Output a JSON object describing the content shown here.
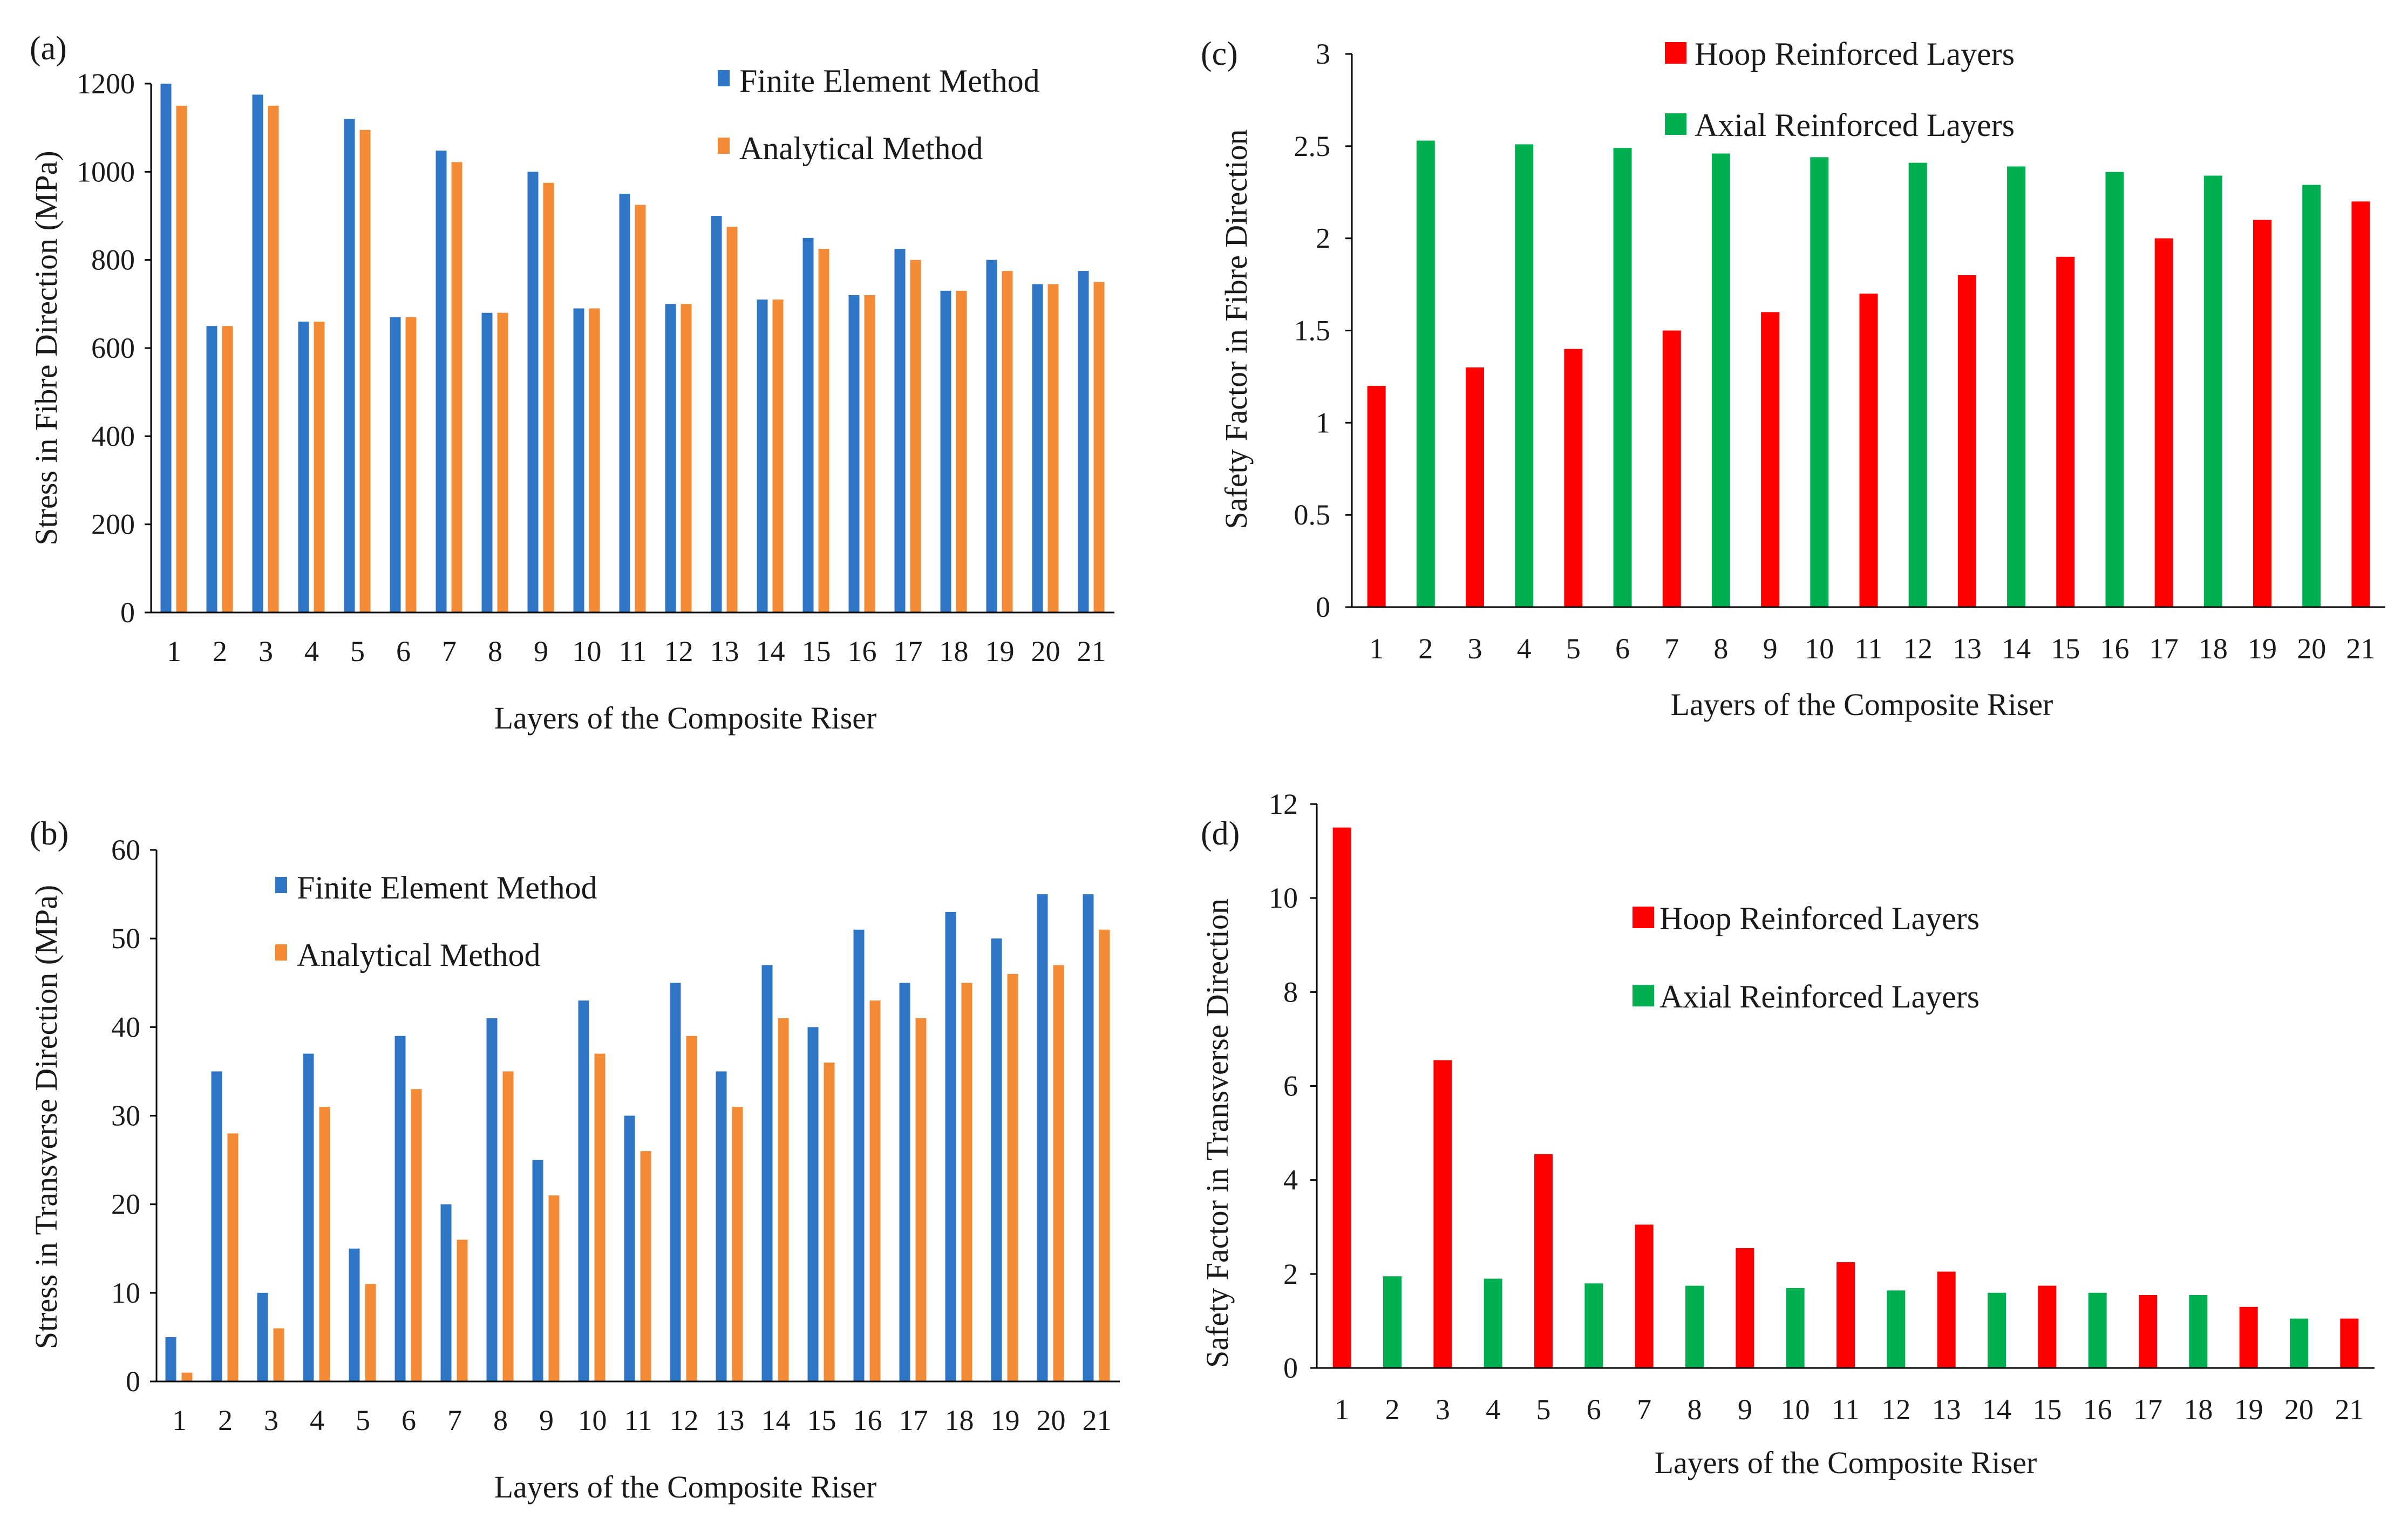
{
  "charts": {
    "a": {
      "type": "bar",
      "label": "(a)",
      "series_colors": [
        "#2e75c6",
        "#f28a36"
      ],
      "legend": [
        "Finite Element Method",
        "Analytical Method"
      ],
      "ylabel": "Stress in Fibre Direction (MPa)",
      "xlabel": "Layers of the Composite Riser",
      "yticks": [
        "0",
        "200",
        "400",
        "600",
        "800",
        "1000",
        "1200"
      ],
      "categories": [
        "1",
        "2",
        "3",
        "4",
        "5",
        "6",
        "7",
        "8",
        "9",
        "10",
        "11",
        "12",
        "13",
        "14",
        "15",
        "16",
        "17",
        "18",
        "19",
        "20",
        "21"
      ]
    },
    "b": {
      "type": "bar",
      "label": "(b)",
      "series_colors": [
        "#2e75c6",
        "#f28a36"
      ],
      "legend": [
        "Finite Element Method",
        "Analytical Method"
      ],
      "ylabel": "Stress in Transverse Direction (MPa)",
      "xlabel": "Layers of the Composite Riser",
      "yticks": [
        "0",
        "10",
        "20",
        "30",
        "40",
        "50",
        "60"
      ],
      "categories": [
        "1",
        "2",
        "3",
        "4",
        "5",
        "6",
        "7",
        "8",
        "9",
        "10",
        "11",
        "12",
        "13",
        "14",
        "15",
        "16",
        "17",
        "18",
        "19",
        "20",
        "21"
      ]
    },
    "c": {
      "type": "bar",
      "label": "(c)",
      "series_colors": [
        "#ff0000",
        "#00b050"
      ],
      "legend": [
        "Hoop Reinforced Layers",
        "Axial Reinforced Layers"
      ],
      "ylabel": "Safety Factor in Fibre Direction",
      "xlabel": "Layers of the Composite Riser",
      "yticks": [
        "0",
        "0.5",
        "1",
        "1.5",
        "2",
        "2.5",
        "3"
      ],
      "categories": [
        "1",
        "2",
        "3",
        "4",
        "5",
        "6",
        "7",
        "8",
        "9",
        "10",
        "11",
        "12",
        "13",
        "14",
        "15",
        "16",
        "17",
        "18",
        "19",
        "20",
        "21"
      ]
    },
    "d": {
      "type": "bar",
      "label": "(d)",
      "series_colors": [
        "#ff0000",
        "#00b050"
      ],
      "legend": [
        "Hoop Reinforced Layers",
        "Axial Reinforced Layers"
      ],
      "ylabel": "Safety Factor in Transverse Direction",
      "xlabel": "Layers of the Composite Riser",
      "yticks": [
        "0",
        "2",
        "4",
        "6",
        "8",
        "10",
        "12"
      ],
      "categories": [
        "1",
        "2",
        "3",
        "4",
        "5",
        "6",
        "7",
        "8",
        "9",
        "10",
        "11",
        "12",
        "13",
        "14",
        "15",
        "16",
        "17",
        "18",
        "19",
        "20",
        "21"
      ]
    }
  },
  "chart_data": [
    {
      "type": "bar",
      "title": "(a)",
      "xlabel": "Layers of the Composite Riser",
      "ylabel": "Stress in Fibre Direction (MPa)",
      "ylim": [
        0,
        1200
      ],
      "categories": [
        1,
        2,
        3,
        4,
        5,
        6,
        7,
        8,
        9,
        10,
        11,
        12,
        13,
        14,
        15,
        16,
        17,
        18,
        19,
        20,
        21
      ],
      "series": [
        {
          "name": "Finite Element Method",
          "values": [
            1200,
            650,
            1175,
            660,
            1120,
            670,
            1048,
            680,
            1000,
            690,
            950,
            700,
            900,
            710,
            850,
            720,
            825,
            730,
            800,
            745,
            775
          ]
        },
        {
          "name": "Analytical Method",
          "values": [
            1150,
            650,
            1150,
            660,
            1095,
            670,
            1022,
            680,
            975,
            690,
            925,
            700,
            875,
            710,
            825,
            720,
            800,
            730,
            775,
            745,
            750
          ]
        }
      ],
      "legend": "top-right"
    },
    {
      "type": "bar",
      "title": "(b)",
      "xlabel": "Layers of the Composite Riser",
      "ylabel": "Stress in Transverse Direction (MPa)",
      "ylim": [
        0,
        60
      ],
      "categories": [
        1,
        2,
        3,
        4,
        5,
        6,
        7,
        8,
        9,
        10,
        11,
        12,
        13,
        14,
        15,
        16,
        17,
        18,
        19,
        20,
        21
      ],
      "series": [
        {
          "name": "Finite Element Method",
          "values": [
            5,
            35,
            10,
            37,
            15,
            39,
            20,
            41,
            25,
            43,
            30,
            45,
            35,
            47,
            40,
            51,
            45,
            53,
            50,
            55,
            55
          ]
        },
        {
          "name": "Analytical Method",
          "values": [
            1,
            28,
            6,
            31,
            11,
            33,
            16,
            35,
            21,
            37,
            26,
            39,
            31,
            41,
            36,
            43,
            41,
            45,
            46,
            47,
            51
          ]
        }
      ],
      "legend": "top-left"
    },
    {
      "type": "bar",
      "title": "(c)",
      "xlabel": "Layers of the Composite Riser",
      "ylabel": "Safety Factor in Fibre Direction",
      "ylim": [
        0,
        3
      ],
      "categories": [
        1,
        2,
        3,
        4,
        5,
        6,
        7,
        8,
        9,
        10,
        11,
        12,
        13,
        14,
        15,
        16,
        17,
        18,
        19,
        20,
        21
      ],
      "series": [
        {
          "name": "Hoop Reinforced Layers",
          "values": [
            1.2,
            null,
            1.3,
            null,
            1.4,
            null,
            1.5,
            null,
            1.6,
            null,
            1.7,
            null,
            1.8,
            null,
            1.9,
            null,
            2.0,
            null,
            2.1,
            null,
            2.2
          ]
        },
        {
          "name": "Axial Reinforced Layers",
          "values": [
            null,
            2.53,
            null,
            2.51,
            null,
            2.49,
            null,
            2.46,
            null,
            2.44,
            null,
            2.41,
            null,
            2.39,
            null,
            2.36,
            null,
            2.34,
            null,
            2.29,
            null
          ]
        }
      ],
      "legend": "top-center"
    },
    {
      "type": "bar",
      "title": "(d)",
      "xlabel": "Layers of the Composite Riser",
      "ylabel": "Safety Factor in Transverse Direction",
      "ylim": [
        0,
        12
      ],
      "categories": [
        1,
        2,
        3,
        4,
        5,
        6,
        7,
        8,
        9,
        10,
        11,
        12,
        13,
        14,
        15,
        16,
        17,
        18,
        19,
        20,
        21
      ],
      "series": [
        {
          "name": "Hoop Reinforced Layers",
          "values": [
            11.5,
            null,
            6.55,
            null,
            4.55,
            null,
            3.05,
            null,
            2.55,
            null,
            2.25,
            null,
            2.05,
            null,
            1.75,
            null,
            1.55,
            null,
            1.3,
            null,
            1.05
          ]
        },
        {
          "name": "Axial Reinforced Layers",
          "values": [
            null,
            1.95,
            null,
            1.9,
            null,
            1.8,
            null,
            1.75,
            null,
            1.7,
            null,
            1.65,
            null,
            1.6,
            null,
            1.6,
            null,
            1.55,
            null,
            1.05,
            null
          ]
        }
      ],
      "legend": "center"
    }
  ]
}
